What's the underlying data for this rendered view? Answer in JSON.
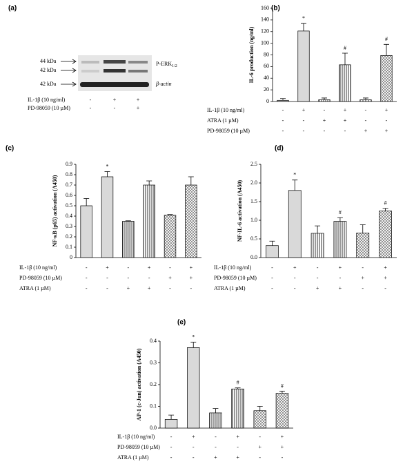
{
  "blot": {
    "label": "(a)",
    "band_labels": [
      "44 kDa",
      "42 kDa",
      "42 kDa"
    ],
    "protein": "P-ERK",
    "protein_sub": "1/2",
    "loading": "β-actin",
    "conditions": [
      {
        "name": "IL-1β (10 ng/ml)",
        "signs": [
          "-",
          "+",
          "+"
        ]
      },
      {
        "name": "PD-98059 (10 µM)",
        "signs": [
          "-",
          "-",
          "+"
        ]
      }
    ]
  },
  "chart_data": [
    {
      "type": "bar",
      "label": "(b)",
      "y_label": "IL-6 production (ng/ml)",
      "values": [
        2,
        121,
        3,
        63,
        3,
        79
      ],
      "errors": [
        3,
        13,
        3,
        20,
        3,
        19
      ],
      "value_annotations": [
        null,
        "*",
        null,
        "#",
        null,
        "#"
      ],
      "ylim": [
        0,
        160
      ],
      "yticks": [
        0,
        20,
        40,
        60,
        80,
        100,
        120,
        140,
        160
      ],
      "conditions": [
        {
          "name": "IL-1β (10 ng/ml)",
          "signs": [
            "-",
            "+",
            "-",
            "+",
            "-",
            "+"
          ]
        },
        {
          "name": "ATRA (1 µM)",
          "signs": [
            "-",
            "-",
            "+",
            "+",
            "-",
            "-"
          ]
        },
        {
          "name": "PD-98059 (10 µM)",
          "signs": [
            "-",
            "-",
            "-",
            "-",
            "+",
            "+"
          ]
        }
      ]
    },
    {
      "type": "bar",
      "label": "(c)",
      "y_label": "NF-κB (p65) activation (A450)",
      "values": [
        0.5,
        0.78,
        0.35,
        0.7,
        0.41,
        0.7
      ],
      "errors": [
        0.07,
        0.05,
        0.005,
        0.04,
        0.005,
        0.08
      ],
      "value_annotations": [
        null,
        "*",
        null,
        null,
        null,
        null
      ],
      "ylim": [
        0,
        0.9
      ],
      "yticks": [
        0,
        0.1,
        0.2,
        0.3,
        0.4,
        0.5,
        0.6,
        0.7,
        0.8,
        0.9
      ],
      "conditions": [
        {
          "name": "IL-1β (10 ng/ml)",
          "signs": [
            "-",
            "+",
            "-",
            "+",
            "-",
            "+"
          ]
        },
        {
          "name": "PD-98059 (10 µM)",
          "signs": [
            "-",
            "-",
            "-",
            "-",
            "+",
            "+"
          ]
        },
        {
          "name": "ATRA (1 µM)",
          "signs": [
            "-",
            "-",
            "+",
            "+",
            "-",
            "-"
          ]
        }
      ]
    },
    {
      "type": "bar",
      "label": "(d)",
      "y_label": "NF-IL-6 activation (A450)",
      "values": [
        0.32,
        1.8,
        0.65,
        0.97,
        0.66,
        1.25
      ],
      "errors": [
        0.12,
        0.28,
        0.2,
        0.1,
        0.22,
        0.07
      ],
      "value_annotations": [
        null,
        "*",
        null,
        "#",
        null,
        "#"
      ],
      "ylim": [
        0,
        2.5
      ],
      "yticks": [
        {
          "value": 0,
          "label": "0.0"
        },
        0.5,
        {
          "value": 1,
          "label": "1.0"
        },
        1.5,
        {
          "value": 2,
          "label": "2.0"
        },
        2.5
      ],
      "conditions": [
        {
          "name": "IL-1β (10 ng/ml)",
          "signs": [
            "-",
            "+",
            "-",
            "+",
            "-",
            "+"
          ]
        },
        {
          "name": "PD-98059 (10 µM)",
          "signs": [
            "-",
            "-",
            "-",
            "-",
            "+",
            "+"
          ]
        },
        {
          "name": "ATRA (1 µM)",
          "signs": [
            "-",
            "-",
            "+",
            "+",
            "-",
            "-"
          ]
        }
      ]
    },
    {
      "type": "bar",
      "label": "(e)",
      "y_label": "AP-1 (c-Jun) activation (A450)",
      "values": [
        0.04,
        0.37,
        0.07,
        0.18,
        0.08,
        0.16
      ],
      "errors": [
        0.02,
        0.025,
        0.02,
        0.005,
        0.02,
        0.01
      ],
      "value_annotations": [
        null,
        "*",
        null,
        "#",
        null,
        "#"
      ],
      "ylim": [
        0,
        0.4
      ],
      "yticks": [
        {
          "value": 0,
          "label": "0.0"
        },
        0.1,
        0.2,
        0.3,
        0.4
      ],
      "conditions": [
        {
          "name": "IL-1β (10 ng/ml)",
          "signs": [
            "-",
            "+",
            "-",
            "+",
            "-",
            "+"
          ]
        },
        {
          "name": "PD-98059 (10 µM)",
          "signs": [
            "-",
            "-",
            "-",
            "-",
            "+",
            "+"
          ]
        },
        {
          "name": "ATRA (1 µM)",
          "signs": [
            "-",
            "-",
            "+",
            "+",
            "-",
            "-"
          ]
        }
      ]
    }
  ]
}
